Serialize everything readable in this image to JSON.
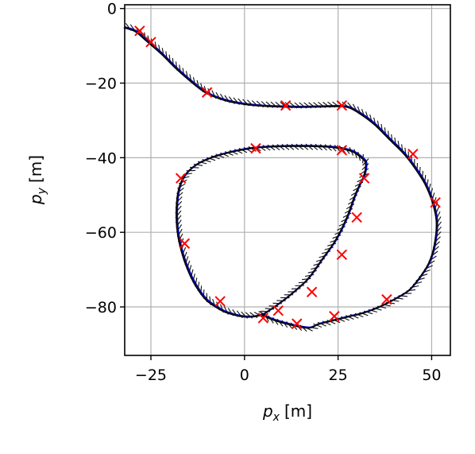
{
  "chart_data": {
    "type": "line",
    "title": "",
    "xlabel": {
      "var": "p",
      "sub": "x",
      "unit": "[m]"
    },
    "ylabel": {
      "var": "p",
      "sub": "y",
      "unit": "[m]"
    },
    "xlim": [
      -32,
      55
    ],
    "ylim": [
      -93,
      1
    ],
    "xticks": [
      -25,
      0,
      25,
      50
    ],
    "yticks": [
      0,
      -20,
      -40,
      -60,
      -80
    ],
    "xtick_labels": [
      "−25",
      "0",
      "25",
      "50"
    ],
    "ytick_labels": [
      "0",
      "−20",
      "−40",
      "−60",
      "−80"
    ],
    "grid": true,
    "legend": "none",
    "colors": {
      "reference": "#0000cc",
      "estimate": "#000000",
      "markers": "#ff0000"
    },
    "series": [
      {
        "style": "reference-path",
        "x": [
          -32,
          -29,
          -26,
          -22,
          -18,
          -14,
          -10,
          -5,
          0,
          5,
          10,
          15,
          20,
          25,
          28,
          31,
          35,
          39,
          43,
          46,
          48.5,
          50.5,
          51.5,
          51,
          49.5,
          47,
          44,
          40,
          36,
          32,
          28,
          24,
          20,
          17.5,
          14,
          10,
          7,
          5
        ],
        "y": [
          -5,
          -6,
          -8.5,
          -12,
          -16,
          -19.5,
          -22.5,
          -24.5,
          -25.5,
          -26,
          -26.2,
          -26.3,
          -26.2,
          -26.1,
          -26.4,
          -28,
          -31,
          -35,
          -39,
          -43,
          -47,
          -52,
          -57,
          -63,
          -68,
          -72,
          -75.5,
          -78,
          -80,
          -81.5,
          -82.5,
          -83.5,
          -84.5,
          -85.5,
          -85,
          -84,
          -83,
          -82
        ]
      },
      {
        "style": "reference-path",
        "x": [
          5,
          8,
          12,
          17,
          21,
          24.5,
          27.5,
          29.5,
          31,
          32,
          32.5,
          32.5,
          31,
          29,
          26.5,
          23,
          18,
          12,
          6,
          1,
          -4,
          -9,
          -13,
          -16,
          -17.5,
          -18,
          -17.5,
          -16,
          -14,
          -12,
          -10,
          -8,
          -5.5,
          -2.5,
          0,
          2.5,
          5
        ],
        "y": [
          -82,
          -80,
          -77,
          -72.5,
          -67,
          -62,
          -56,
          -50.5,
          -47,
          -45,
          -43,
          -41,
          -39.5,
          -38.2,
          -37.5,
          -37,
          -36.8,
          -36.8,
          -37,
          -37.5,
          -38.5,
          -40,
          -42,
          -45,
          -49,
          -55,
          -61,
          -67,
          -72,
          -75.5,
          -78,
          -79.5,
          -81,
          -82,
          -82.5,
          -82.5,
          -82
        ]
      }
    ],
    "markers": {
      "symbol": "x",
      "x": [
        -28,
        -25,
        -10,
        11,
        26,
        45,
        51,
        3,
        -17,
        26,
        32,
        30,
        -16,
        26,
        18,
        9,
        5,
        14,
        24,
        38,
        -6.5
      ],
      "y": [
        -6,
        -9,
        -22.5,
        -26,
        -26,
        -39,
        -52,
        -37.5,
        -45.5,
        -38,
        -45.5,
        -56,
        -63,
        -66,
        -76,
        -81,
        -83,
        -84.5,
        -82.5,
        -78,
        -78.5
      ]
    },
    "direction_arrows": "short black heading arrows drawn densely along the estimated trajectory"
  }
}
